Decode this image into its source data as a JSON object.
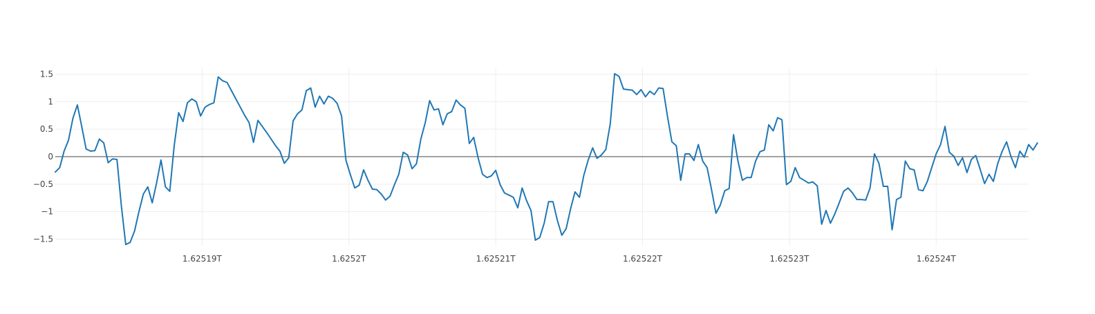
{
  "chart_data": {
    "type": "line",
    "title": "",
    "xlabel": "",
    "ylabel": "",
    "grid": true,
    "legend": "none",
    "colors": {
      "series": "#1f77b4",
      "grid": "#eeeeee",
      "zero_line": "#444444",
      "text": "#444444"
    },
    "x_tick_labels": [
      "1.62519T",
      "1.6252T",
      "1.62521T",
      "1.62522T",
      "1.62523T",
      "1.62524T"
    ],
    "x_ticks": [
      1625190000000,
      1625200000000,
      1625210000000,
      1625220000000,
      1625230000000,
      1625240000000
    ],
    "y_tick_labels": [
      "1.5",
      "1",
      "0.5",
      "0",
      "−0.5",
      "−1",
      "−1.5"
    ],
    "y_ticks": [
      1.5,
      1,
      0.5,
      0,
      -0.5,
      -1,
      -1.5
    ],
    "xlim": [
      1625180000000,
      1625246300000
    ],
    "ylim": [
      -1.62,
      1.62
    ],
    "series": [
      {
        "x_start": 1625180000000,
        "x_step": 300000,
        "y": [
          -0.28,
          -0.2,
          0.1,
          0.3,
          0.7,
          0.94,
          0.55,
          0.14,
          0.1,
          0.11,
          0.32,
          0.25,
          -0.11,
          -0.04,
          -0.05,
          -0.9,
          -1.6,
          -1.56,
          -1.35,
          -1.0,
          -0.68,
          -0.55,
          -0.84,
          -0.48,
          -0.06,
          -0.55,
          -0.63,
          0.2,
          0.8,
          0.64,
          0.98,
          1.05,
          1.0,
          0.74,
          0.9,
          0.95,
          0.98,
          1.45,
          1.38,
          1.35,
          1.2,
          1.05,
          0.9,
          0.75,
          0.62,
          0.26,
          0.66,
          0.55,
          0.44,
          0.32,
          0.2,
          0.1,
          -0.12,
          -0.02,
          0.65,
          0.78,
          0.85,
          1.2,
          1.25,
          0.9,
          1.1,
          0.96,
          1.1,
          1.06,
          0.97,
          0.74,
          -0.07,
          -0.33,
          -0.57,
          -0.52,
          -0.24,
          -0.43,
          -0.59,
          -0.6,
          -0.68,
          -0.79,
          -0.72,
          -0.51,
          -0.32,
          0.08,
          0.03,
          -0.22,
          -0.13,
          0.32,
          0.62,
          1.02,
          0.85,
          0.87,
          0.58,
          0.78,
          0.82,
          1.03,
          0.94,
          0.88,
          0.24,
          0.35,
          -0.02,
          -0.32,
          -0.38,
          -0.35,
          -0.25,
          -0.51,
          -0.66,
          -0.7,
          -0.74,
          -0.93,
          -0.57,
          -0.8,
          -0.98,
          -1.52,
          -1.47,
          -1.21,
          -0.82,
          -0.82,
          -1.16,
          -1.43,
          -1.31,
          -0.95,
          -0.64,
          -0.74,
          -0.34,
          -0.06,
          0.16,
          -0.03,
          0.03,
          0.13,
          0.6,
          1.51,
          1.46,
          1.23,
          1.22,
          1.21,
          1.13,
          1.22,
          1.09,
          1.19,
          1.13,
          1.25,
          1.24,
          0.73,
          0.27,
          0.2,
          -0.43,
          0.05,
          0.05,
          -0.07,
          0.22,
          -0.08,
          -0.2,
          -0.6,
          -1.03,
          -0.88,
          -0.62,
          -0.58,
          0.4,
          -0.08,
          -0.43,
          -0.38,
          -0.38,
          -0.08,
          0.09,
          0.12,
          0.58,
          0.47,
          0.71,
          0.67,
          -0.51,
          -0.45,
          -0.2,
          -0.38,
          -0.43,
          -0.48,
          -0.46,
          -0.53,
          -1.23,
          -0.98,
          -1.21,
          -1.04,
          -0.84,
          -0.63,
          -0.57,
          -0.66,
          -0.78,
          -0.78,
          -0.79,
          -0.57,
          0.05,
          -0.12,
          -0.54,
          -0.54,
          -1.33,
          -0.78,
          -0.74,
          -0.08,
          -0.22,
          -0.24,
          -0.6,
          -0.62,
          -0.45,
          -0.2,
          0.05,
          0.22,
          0.55,
          0.08,
          0.01,
          -0.16,
          -0.02,
          -0.29,
          -0.05,
          0.02,
          -0.23,
          -0.49,
          -0.32,
          -0.45,
          -0.12,
          0.1,
          0.27,
          0.0,
          -0.2,
          0.1,
          -0.01,
          0.22,
          0.12,
          0.25
        ]
      }
    ]
  }
}
